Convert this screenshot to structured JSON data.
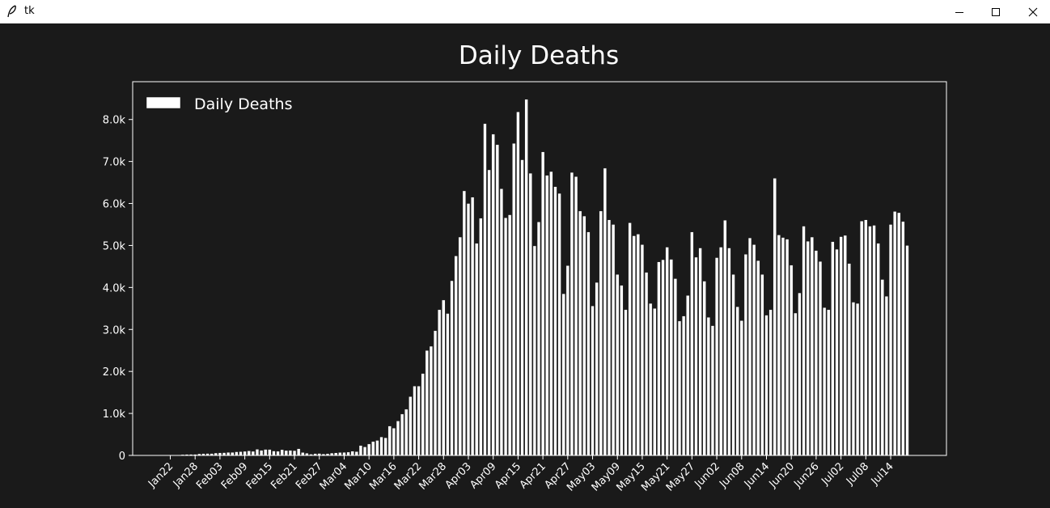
{
  "window": {
    "title": "tk",
    "icons": {
      "app": "feather-icon",
      "minimize": "minimize-icon",
      "maximize": "maximize-icon",
      "close": "close-icon"
    }
  },
  "chart_data": {
    "type": "bar",
    "title": "Daily Deaths",
    "xlabel": "",
    "ylabel": "",
    "ylim": [
      0,
      8900
    ],
    "yticks": [
      0,
      1000,
      2000,
      3000,
      4000,
      5000,
      6000,
      7000,
      8000
    ],
    "ytick_labels": [
      "0",
      "1.0k",
      "2.0k",
      "3.0k",
      "4.0k",
      "5.0k",
      "6.0k",
      "7.0k",
      "8.0k"
    ],
    "xtick_labels": [
      "Jan22",
      "Jan28",
      "Feb03",
      "Feb09",
      "Feb15",
      "Feb21",
      "Feb27",
      "Mar04",
      "Mar10",
      "Mar16",
      "Mar22",
      "Mar28",
      "Apr03",
      "Apr09",
      "Apr15",
      "Apr21",
      "Apr27",
      "May03",
      "May09",
      "May15",
      "May21",
      "May27",
      "Jun02",
      "Jun08",
      "Jun14",
      "Jun20",
      "Jun26",
      "Jul02",
      "Jul08",
      "Jul14"
    ],
    "xtick_interval": 6,
    "grid": false,
    "legend_position": "top-left",
    "colors": {
      "background": "#1a1a1a",
      "bar": "#ffffff",
      "bar_edge": "#1a1a1a",
      "axes": "#ffffff",
      "text": "#ffffff"
    },
    "series": [
      {
        "name": "Daily Deaths",
        "values": [
          0,
          0,
          10,
          20,
          25,
          26,
          26,
          38,
          43,
          46,
          45,
          57,
          64,
          66,
          73,
          73,
          86,
          89,
          97,
          108,
          97,
          146,
          121,
          143,
          142,
          105,
          98,
          136,
          116,
          119,
          114,
          160,
          70,
          52,
          29,
          44,
          47,
          35,
          42,
          56,
          63,
          70,
          73,
          79,
          100,
          90,
          236,
          203,
          272,
          330,
          357,
          440,
          420,
          700,
          650,
          820,
          985,
          1100,
          1400,
          1650,
          1650,
          1950,
          2500,
          2600,
          2970,
          3470,
          3700,
          3380,
          4160,
          4750,
          5200,
          6300,
          6000,
          6150,
          5050,
          5650,
          7900,
          6800,
          7650,
          7400,
          6350,
          5660,
          5730,
          7430,
          8180,
          7040,
          8480,
          6720,
          4990,
          5560,
          7230,
          6670,
          6760,
          6400,
          6240,
          3850,
          4520,
          6740,
          6640,
          5820,
          5700,
          5320,
          3560,
          4120,
          5820,
          6840,
          5610,
          5500,
          4310,
          4050,
          3470,
          5540,
          5230,
          5270,
          5020,
          4360,
          3620,
          3500,
          4610,
          4660,
          4960,
          4670,
          4210,
          3200,
          3320,
          3810,
          5320,
          4720,
          4940,
          4150,
          3290,
          3090,
          4710,
          4960,
          5600,
          4940,
          4310,
          3540,
          3210,
          4790,
          5180,
          5020,
          4640,
          4310,
          3340,
          3470,
          6600,
          5250,
          5190,
          5150,
          4530,
          3390,
          3870,
          5460,
          5100,
          5200,
          4880,
          4620,
          3520,
          3470,
          5090,
          4910,
          5210,
          5240,
          4570,
          3650,
          3620,
          5580,
          5610,
          5460,
          5480,
          5050,
          4190,
          3790,
          5500,
          5810,
          5780,
          5570,
          5000
        ]
      }
    ]
  }
}
